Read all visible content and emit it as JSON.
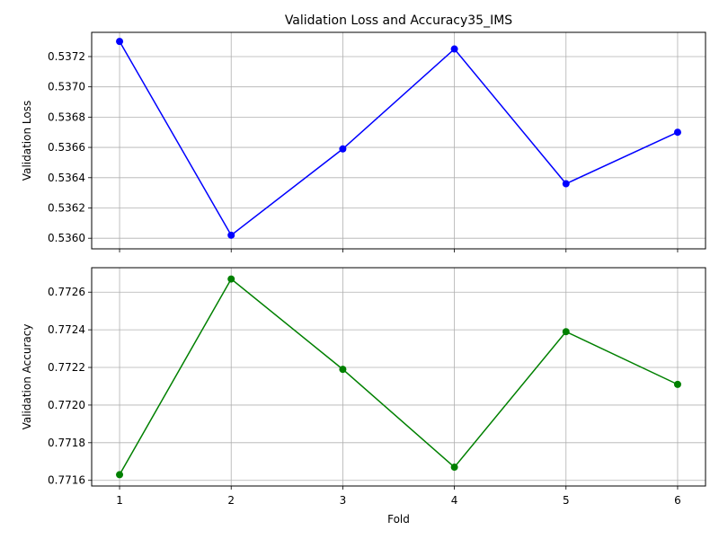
{
  "chart_data": [
    {
      "type": "line",
      "title": "Validation Loss and Accuracy35_IMS",
      "xlabel": "",
      "ylabel": "Validation Loss",
      "x": [
        1,
        2,
        3,
        4,
        5,
        6
      ],
      "series": [
        {
          "values": [
            0.5373,
            0.53602,
            0.53659,
            0.53725,
            0.53636,
            0.5367
          ],
          "color": "#0000ff"
        }
      ],
      "ylim": [
        0.53593,
        0.53736
      ],
      "xlim": [
        0.75,
        6.25
      ],
      "x_ticks": [
        "1",
        "2",
        "3",
        "4",
        "5",
        "6"
      ],
      "y_ticks": [
        "0.5360",
        "0.5362",
        "0.5364",
        "0.5366",
        "0.5368",
        "0.5370",
        "0.5372"
      ],
      "y_tick_values": [
        0.536,
        0.5362,
        0.5364,
        0.5366,
        0.5368,
        0.537,
        0.5372
      ],
      "grid": true,
      "marker": "circle"
    },
    {
      "type": "line",
      "title": "",
      "xlabel": "Fold",
      "ylabel": "Validation Accuracy",
      "x": [
        1,
        2,
        3,
        4,
        5,
        6
      ],
      "series": [
        {
          "values": [
            0.77163,
            0.77267,
            0.77219,
            0.77167,
            0.77239,
            0.77211
          ],
          "color": "#008000"
        }
      ],
      "ylim": [
        0.77157,
        0.77273
      ],
      "xlim": [
        0.75,
        6.25
      ],
      "x_ticks": [
        "1",
        "2",
        "3",
        "4",
        "5",
        "6"
      ],
      "y_ticks": [
        "0.7716",
        "0.7718",
        "0.7720",
        "0.7722",
        "0.7724",
        "0.7726"
      ],
      "y_tick_values": [
        0.7716,
        0.7718,
        0.772,
        0.7722,
        0.7724,
        0.7726
      ],
      "grid": true,
      "marker": "circle"
    }
  ]
}
